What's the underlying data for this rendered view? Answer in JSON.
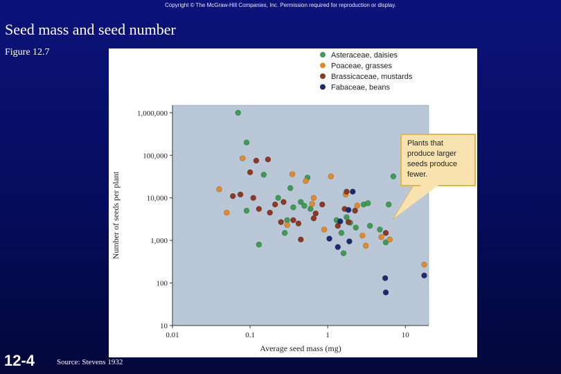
{
  "slide": {
    "copyright": "Copyright © The McGraw-Hill Companies, Inc. Permission required for reproduction or display.",
    "title": "Seed mass and seed number",
    "figure_label": "Figure 12.7",
    "slide_number": "12-4",
    "source": "Source: Stevens 1932"
  },
  "colors": {
    "background": "#0b137a",
    "plot_bg": "#b9c7d6",
    "callout_bg": "#f8e3b0",
    "callout_border": "#e2b45a"
  },
  "chart_data": {
    "type": "scatter",
    "title": "",
    "xlabel": "Average seed mass (mg)",
    "ylabel": "Number of seeds per plant",
    "xscale": "log",
    "yscale": "log",
    "xlim": [
      0.01,
      20
    ],
    "ylim": [
      10,
      1500000
    ],
    "x_ticks": [
      0.01,
      0.1,
      1,
      10
    ],
    "x_tick_labels": [
      "0.01",
      "0.1",
      "1",
      "10"
    ],
    "y_ticks": [
      10,
      100,
      1000,
      10000,
      100000,
      1000000
    ],
    "y_tick_labels": [
      "10",
      "100",
      "1,000",
      "10,000",
      "100,000",
      "1,000,000"
    ],
    "legend_position": "top-right",
    "callout": {
      "lines": [
        "Plants that",
        "produce larger",
        "seeds produce",
        "fewer."
      ]
    },
    "series": [
      {
        "name": "Asteraceae, daisies",
        "color": "#3f9a55",
        "points": [
          [
            0.07,
            1000000
          ],
          [
            0.09,
            200000
          ],
          [
            0.09,
            5000
          ],
          [
            0.13,
            800
          ],
          [
            0.15,
            35000
          ],
          [
            0.23,
            10000
          ],
          [
            0.28,
            1500
          ],
          [
            0.3,
            3000
          ],
          [
            0.33,
            17000
          ],
          [
            0.36,
            6000
          ],
          [
            0.45,
            8000
          ],
          [
            0.5,
            6500
          ],
          [
            0.55,
            30000
          ],
          [
            0.6,
            5500
          ],
          [
            1.3,
            3000
          ],
          [
            1.5,
            1500
          ],
          [
            1.6,
            500
          ],
          [
            1.75,
            3500
          ],
          [
            1.95,
            2600
          ],
          [
            2.3,
            2000
          ],
          [
            2.9,
            7000
          ],
          [
            3.3,
            7500
          ],
          [
            3.5,
            2200
          ],
          [
            4.7,
            1800
          ],
          [
            5.6,
            900
          ],
          [
            6.1,
            7000
          ],
          [
            7.0,
            32000
          ]
        ]
      },
      {
        "name": "Poaceae, grasses",
        "color": "#e08a30",
        "points": [
          [
            0.04,
            16000
          ],
          [
            0.05,
            4500
          ],
          [
            0.08,
            85000
          ],
          [
            0.3,
            2300
          ],
          [
            0.35,
            36000
          ],
          [
            0.52,
            25000
          ],
          [
            0.63,
            7200
          ],
          [
            0.66,
            10000
          ],
          [
            0.9,
            1800
          ],
          [
            1.1,
            32000
          ],
          [
            1.7,
            12000
          ],
          [
            2.4,
            6600
          ],
          [
            2.8,
            1300
          ],
          [
            3.1,
            750
          ],
          [
            4.9,
            1200
          ],
          [
            6.3,
            1050
          ],
          [
            17.5,
            270
          ]
        ]
      },
      {
        "name": "Brassicaceae, mustards",
        "color": "#8a3a24",
        "points": [
          [
            0.06,
            11000
          ],
          [
            0.075,
            12000
          ],
          [
            0.1,
            40000
          ],
          [
            0.11,
            10000
          ],
          [
            0.12,
            75000
          ],
          [
            0.13,
            5500
          ],
          [
            0.17,
            80000
          ],
          [
            0.18,
            4500
          ],
          [
            0.21,
            7000
          ],
          [
            0.25,
            2700
          ],
          [
            0.27,
            8000
          ],
          [
            0.36,
            3000
          ],
          [
            0.42,
            2500
          ],
          [
            0.45,
            1050
          ],
          [
            0.66,
            3300
          ],
          [
            0.7,
            4300
          ],
          [
            0.85,
            7000
          ],
          [
            1.35,
            2200
          ],
          [
            1.65,
            5500
          ],
          [
            1.75,
            14000
          ],
          [
            1.85,
            2700
          ],
          [
            2.25,
            5000
          ],
          [
            5.6,
            1500
          ]
        ]
      },
      {
        "name": "Fabaceae, beans",
        "color": "#1e2a6e",
        "points": [
          [
            1.05,
            1100
          ],
          [
            1.35,
            700
          ],
          [
            1.45,
            2800
          ],
          [
            1.85,
            5200
          ],
          [
            1.9,
            950
          ],
          [
            2.1,
            14000
          ],
          [
            5.5,
            130
          ],
          [
            5.6,
            60
          ],
          [
            17.5,
            150
          ]
        ]
      }
    ]
  }
}
